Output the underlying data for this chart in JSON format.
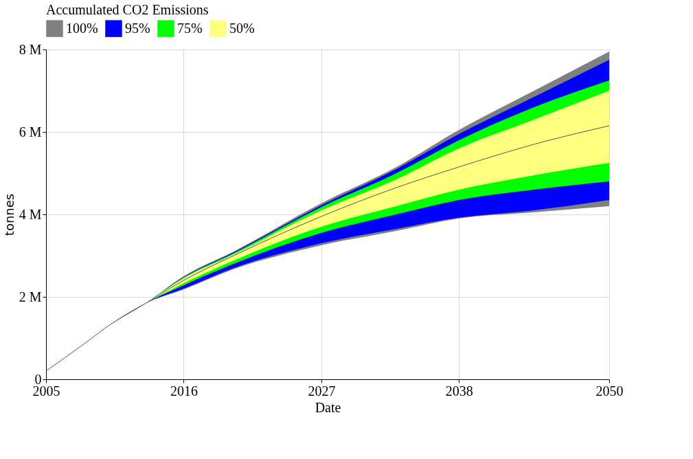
{
  "chart_data": {
    "type": "line",
    "title": "Accumulated CO2 Emissions",
    "xlabel": "Date",
    "ylabel": "tonnes",
    "x": [
      2005,
      2008,
      2010,
      2013,
      2016,
      2020,
      2027,
      2033,
      2038,
      2044,
      2050
    ],
    "xlim": [
      2005,
      2050
    ],
    "xticks": [
      2005,
      2016,
      2027,
      2038,
      2050
    ],
    "ylim": [
      0,
      8000000
    ],
    "yticks": [
      {
        "value": 0,
        "label": "0"
      },
      {
        "value": 2000000,
        "label": "2 M"
      },
      {
        "value": 4000000,
        "label": "4 M"
      },
      {
        "value": 6000000,
        "label": "6 M"
      },
      {
        "value": 8000000,
        "label": "8 M"
      }
    ],
    "grid": true,
    "legend": "top left",
    "series": [
      {
        "name": "100%",
        "color": "#808080",
        "type": "area",
        "values": [
          null,
          null,
          null,
          null,
          null,
          null,
          null,
          null,
          null,
          null,
          null
        ],
        "lower": [
          200000,
          850000,
          1300000,
          1850000,
          2180000,
          2670000,
          3250000,
          3600000,
          3900000,
          4050000,
          4200000
        ],
        "upper": [
          200000,
          850000,
          1300000,
          1850000,
          2500000,
          3100000,
          4270000,
          5150000,
          6050000,
          7000000,
          7950000
        ]
      },
      {
        "name": "95%",
        "color": "#0000ff",
        "type": "area",
        "values": [
          null,
          null,
          null,
          null,
          null,
          null,
          null,
          null,
          null,
          null,
          null
        ],
        "lower": [
          200000,
          850000,
          1300000,
          1850000,
          2200000,
          2700000,
          3300000,
          3650000,
          3920000,
          4100000,
          4350000
        ],
        "upper": [
          200000,
          850000,
          1300000,
          1850000,
          2480000,
          3080000,
          4220000,
          5100000,
          5950000,
          6850000,
          7750000
        ]
      },
      {
        "name": "75%",
        "color": "#00ff00",
        "type": "area",
        "values": [
          null,
          null,
          null,
          null,
          null,
          null,
          null,
          null,
          null,
          null,
          null
        ],
        "lower": [
          200000,
          850000,
          1300000,
          1850000,
          2280000,
          2800000,
          3550000,
          4000000,
          4350000,
          4600000,
          4800000
        ],
        "upper": [
          200000,
          850000,
          1300000,
          1850000,
          2470000,
          3060000,
          4180000,
          5000000,
          5800000,
          6600000,
          7250000
        ]
      },
      {
        "name": "50%",
        "color": "#ffff80",
        "type": "area",
        "values": [
          null,
          null,
          null,
          null,
          null,
          null,
          null,
          null,
          null,
          null,
          null
        ],
        "lower": [
          200000,
          850000,
          1300000,
          1850000,
          2330000,
          2880000,
          3700000,
          4200000,
          4600000,
          4950000,
          5250000
        ],
        "upper": [
          200000,
          850000,
          1300000,
          1850000,
          2450000,
          3030000,
          4100000,
          4850000,
          5600000,
          6300000,
          7000000
        ]
      },
      {
        "color": "#555555",
        "values": [
          200000,
          850000,
          1300000,
          1850000,
          2400000,
          3000000,
          3950000,
          4650000,
          5150000,
          5700000,
          6150000
        ]
      }
    ]
  }
}
